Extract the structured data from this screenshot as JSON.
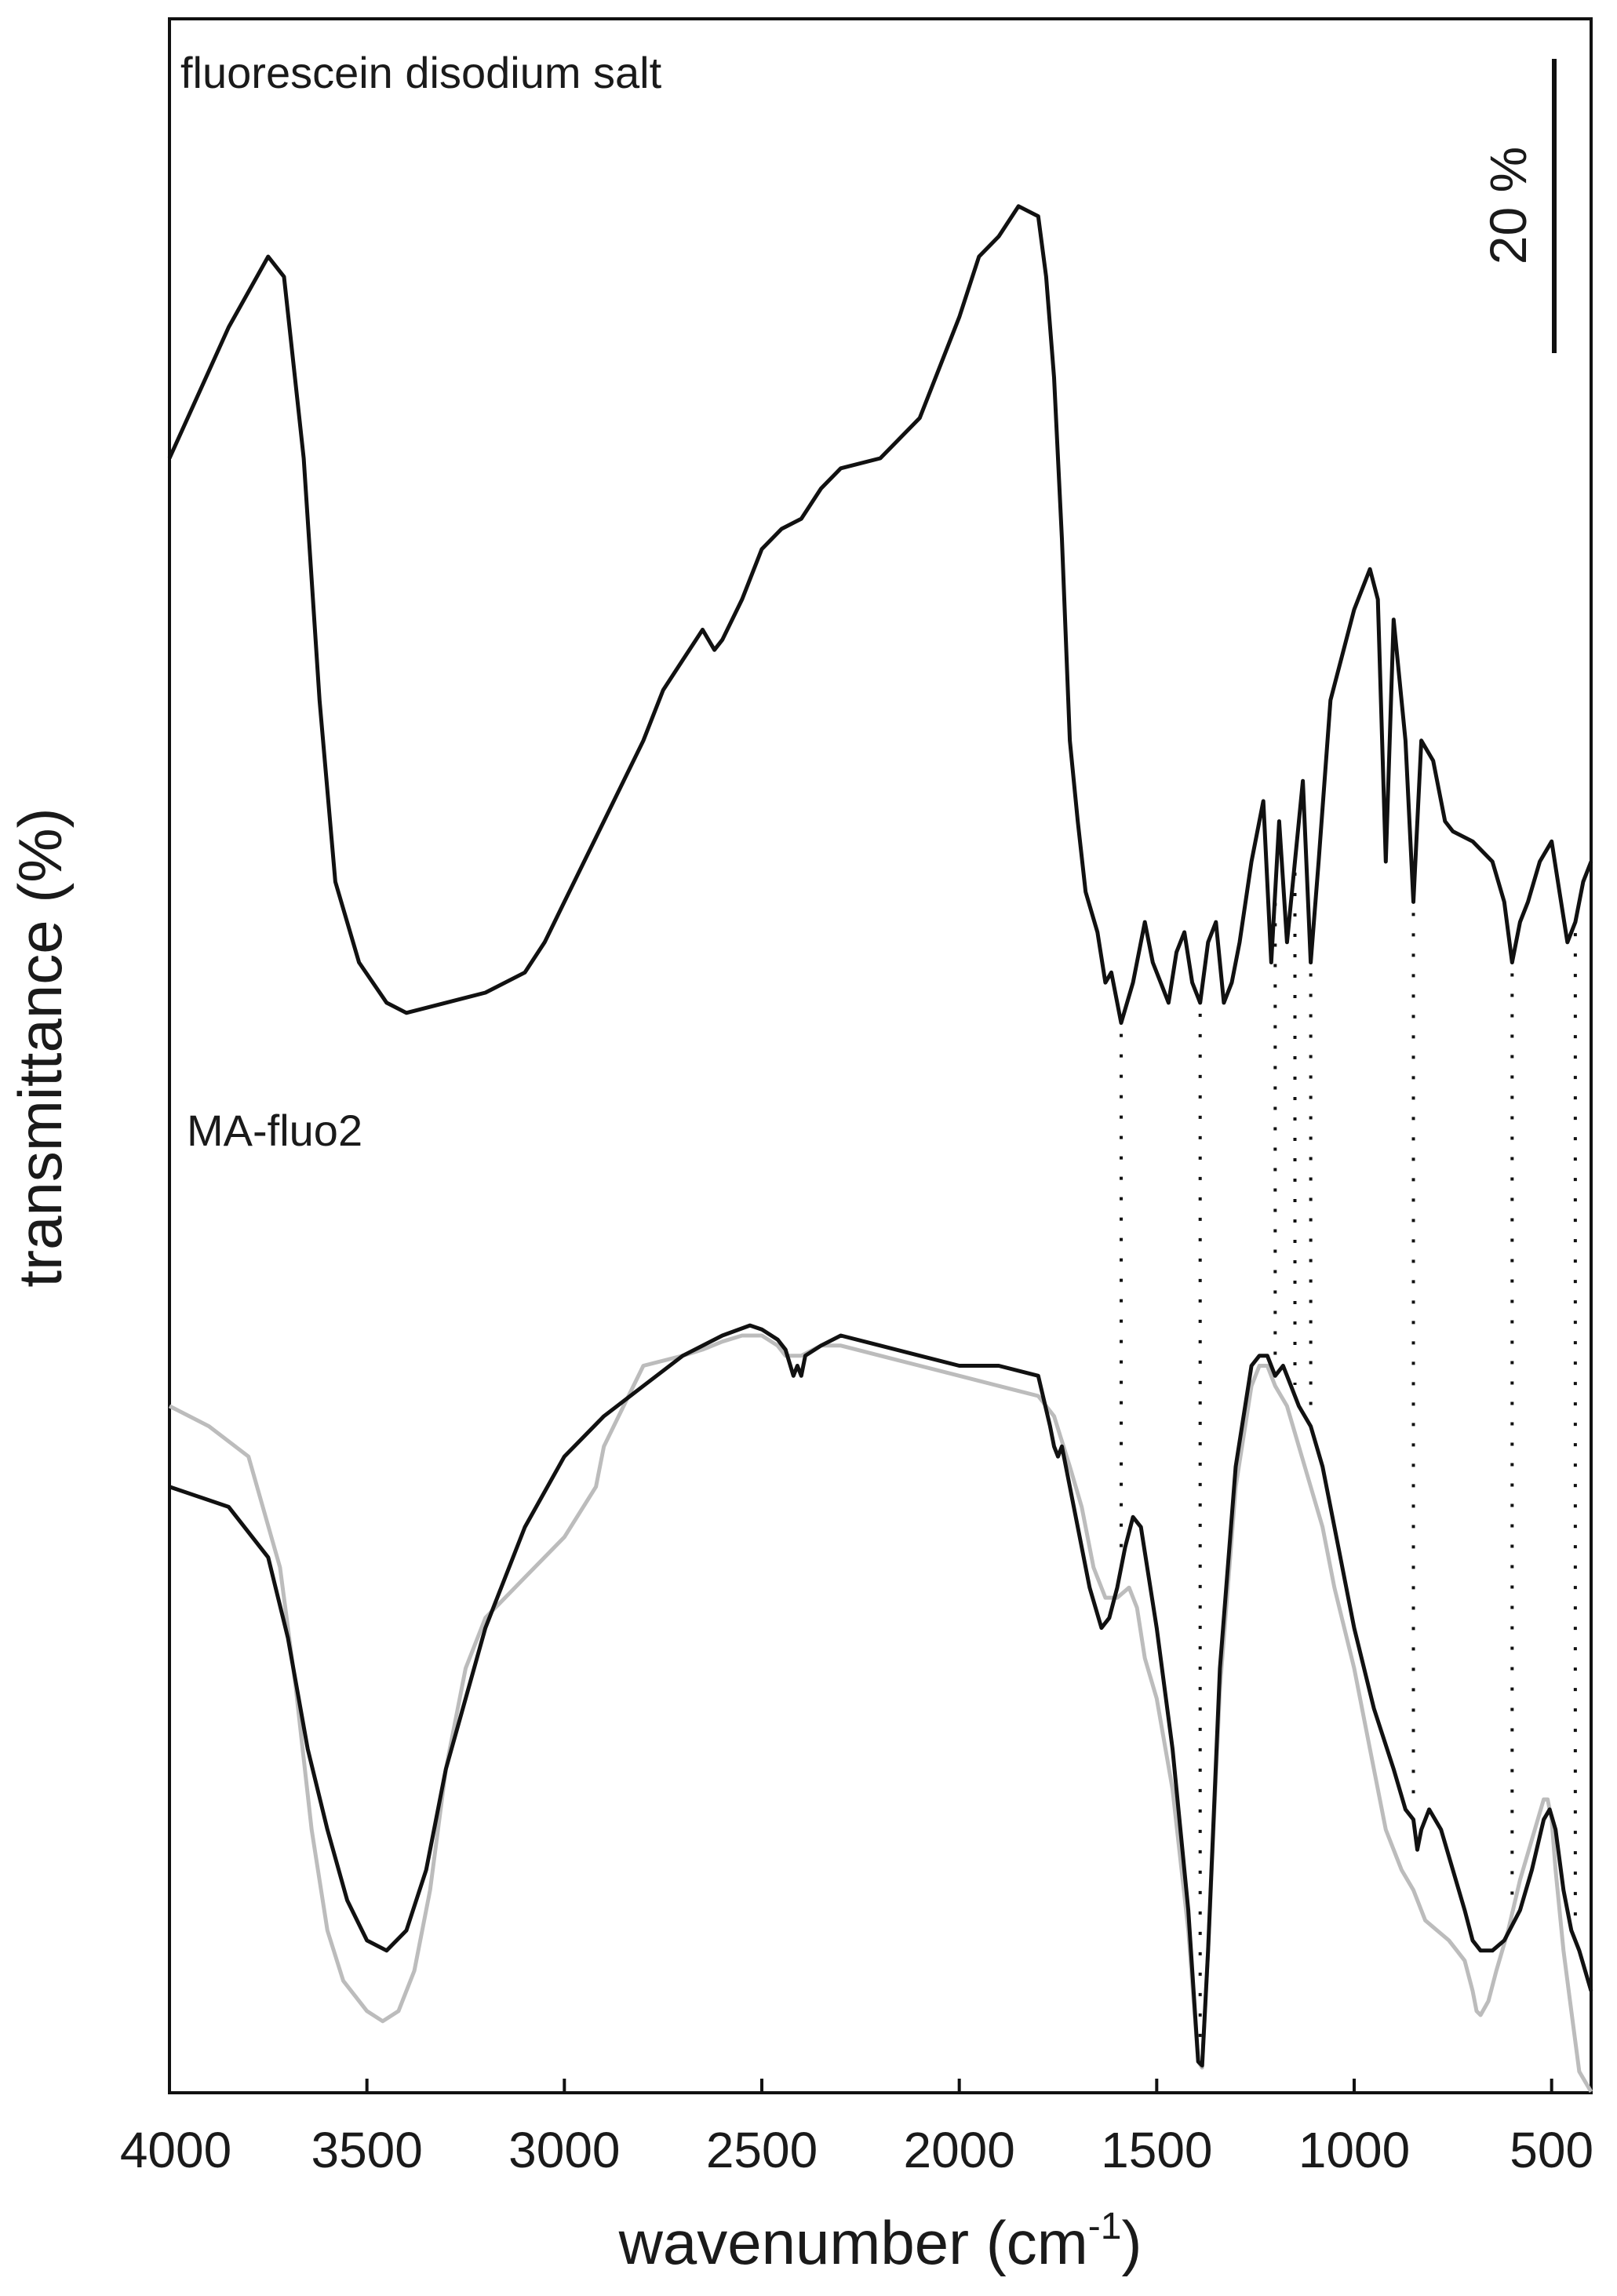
{
  "chart_data": {
    "type": "line",
    "title": "",
    "xlabel": "wavenumber (cm-1)",
    "xlabel_base": "wavenumber (cm",
    "xlabel_sup": "-1",
    "xlabel_close": ")",
    "ylabel": "transmittance (%)",
    "xlim": [
      4000,
      400
    ],
    "x_reversed": true,
    "xticks": [
      "4000",
      "3500",
      "3000",
      "2500",
      "2000",
      "1500",
      "1000",
      "500"
    ],
    "xtick_values": [
      4000,
      3500,
      3000,
      2500,
      2000,
      1500,
      1000,
      500
    ],
    "ylim": [
      0,
      100
    ],
    "yticks_shown": false,
    "grid": false,
    "scale_bar": {
      "label": "20 %",
      "value": 20
    },
    "annotations": [
      {
        "text": "fluorescein disodium salt"
      },
      {
        "text": "MA-fluo2"
      }
    ],
    "dotted_guides": [
      1590,
      1390,
      1200,
      1150,
      1110,
      850,
      600,
      440
    ],
    "series": [
      {
        "color": "#111111",
        "points": [
          [
            4000,
            80
          ],
          [
            3850,
            86.5
          ],
          [
            3750,
            90
          ],
          [
            3710,
            89
          ],
          [
            3660,
            80
          ],
          [
            3620,
            68
          ],
          [
            3580,
            59
          ],
          [
            3520,
            55
          ],
          [
            3450,
            53
          ],
          [
            3400,
            52.5
          ],
          [
            3300,
            53
          ],
          [
            3200,
            53.5
          ],
          [
            3100,
            54.5
          ],
          [
            3050,
            56
          ],
          [
            3000,
            58
          ],
          [
            2900,
            62
          ],
          [
            2800,
            66
          ],
          [
            2750,
            68.5
          ],
          [
            2700,
            70
          ],
          [
            2650,
            71.5
          ],
          [
            2620,
            70.5
          ],
          [
            2600,
            71
          ],
          [
            2550,
            73
          ],
          [
            2500,
            75.5
          ],
          [
            2450,
            76.5
          ],
          [
            2400,
            77
          ],
          [
            2350,
            78.5
          ],
          [
            2300,
            79.5
          ],
          [
            2200,
            80
          ],
          [
            2100,
            82
          ],
          [
            2000,
            87
          ],
          [
            1950,
            90
          ],
          [
            1900,
            91
          ],
          [
            1850,
            92.5
          ],
          [
            1800,
            92
          ],
          [
            1780,
            89
          ],
          [
            1760,
            84
          ],
          [
            1740,
            76
          ],
          [
            1720,
            66
          ],
          [
            1700,
            62
          ],
          [
            1680,
            58.5
          ],
          [
            1650,
            56.5
          ],
          [
            1630,
            54
          ],
          [
            1615,
            54.5
          ],
          [
            1600,
            53
          ],
          [
            1590,
            52
          ],
          [
            1560,
            54
          ],
          [
            1530,
            57
          ],
          [
            1510,
            55
          ],
          [
            1490,
            54
          ],
          [
            1470,
            53
          ],
          [
            1450,
            55.5
          ],
          [
            1430,
            56.5
          ],
          [
            1410,
            54
          ],
          [
            1390,
            53
          ],
          [
            1370,
            56
          ],
          [
            1350,
            57
          ],
          [
            1330,
            53
          ],
          [
            1310,
            54
          ],
          [
            1290,
            56
          ],
          [
            1260,
            60
          ],
          [
            1230,
            63
          ],
          [
            1210,
            55
          ],
          [
            1190,
            62
          ],
          [
            1170,
            56
          ],
          [
            1150,
            60
          ],
          [
            1130,
            64
          ],
          [
            1110,
            55
          ],
          [
            1090,
            60
          ],
          [
            1060,
            68
          ],
          [
            1000,
            72.5
          ],
          [
            960,
            74.5
          ],
          [
            940,
            73
          ],
          [
            920,
            60
          ],
          [
            900,
            72
          ],
          [
            870,
            66
          ],
          [
            850,
            58
          ],
          [
            830,
            66
          ],
          [
            800,
            65
          ],
          [
            770,
            62
          ],
          [
            750,
            61.5
          ],
          [
            700,
            61
          ],
          [
            650,
            60
          ],
          [
            620,
            58
          ],
          [
            600,
            55
          ],
          [
            580,
            57
          ],
          [
            560,
            58
          ],
          [
            530,
            60
          ],
          [
            500,
            61
          ],
          [
            480,
            58.5
          ],
          [
            460,
            56
          ],
          [
            440,
            57
          ],
          [
            420,
            59
          ],
          [
            400,
            60
          ]
        ]
      },
      {
        "color": "#111111",
        "points": [
          [
            4000,
            29
          ],
          [
            3850,
            28
          ],
          [
            3750,
            25.5
          ],
          [
            3700,
            21.5
          ],
          [
            3650,
            16
          ],
          [
            3600,
            12
          ],
          [
            3550,
            8.5
          ],
          [
            3500,
            6.5
          ],
          [
            3450,
            6
          ],
          [
            3400,
            7
          ],
          [
            3350,
            10
          ],
          [
            3300,
            15
          ],
          [
            3200,
            22
          ],
          [
            3100,
            27
          ],
          [
            3000,
            30.5
          ],
          [
            2900,
            32.5
          ],
          [
            2800,
            34
          ],
          [
            2700,
            35.5
          ],
          [
            2600,
            36.5
          ],
          [
            2530,
            37
          ],
          [
            2500,
            36.8
          ],
          [
            2460,
            36.3
          ],
          [
            2440,
            35.8
          ],
          [
            2420,
            34.5
          ],
          [
            2410,
            35
          ],
          [
            2400,
            34.5
          ],
          [
            2390,
            35.5
          ],
          [
            2350,
            36
          ],
          [
            2300,
            36.5
          ],
          [
            2200,
            36
          ],
          [
            2100,
            35.5
          ],
          [
            2000,
            35
          ],
          [
            1900,
            35
          ],
          [
            1800,
            34.5
          ],
          [
            1770,
            32
          ],
          [
            1760,
            31
          ],
          [
            1750,
            30.5
          ],
          [
            1740,
            31
          ],
          [
            1720,
            29
          ],
          [
            1700,
            27
          ],
          [
            1670,
            24
          ],
          [
            1640,
            22
          ],
          [
            1620,
            22.5
          ],
          [
            1600,
            24
          ],
          [
            1580,
            26
          ],
          [
            1560,
            27.5
          ],
          [
            1540,
            27
          ],
          [
            1500,
            22
          ],
          [
            1460,
            16
          ],
          [
            1420,
            8
          ],
          [
            1395,
            0.5
          ],
          [
            1385,
            0.3
          ],
          [
            1370,
            6
          ],
          [
            1340,
            20
          ],
          [
            1300,
            30
          ],
          [
            1260,
            35
          ],
          [
            1240,
            35.5
          ],
          [
            1220,
            35.5
          ],
          [
            1200,
            34.5
          ],
          [
            1180,
            35
          ],
          [
            1160,
            34
          ],
          [
            1140,
            33
          ],
          [
            1110,
            32
          ],
          [
            1080,
            30
          ],
          [
            1040,
            26
          ],
          [
            1000,
            22
          ],
          [
            950,
            18
          ],
          [
            900,
            15
          ],
          [
            870,
            13
          ],
          [
            850,
            12.5
          ],
          [
            840,
            11
          ],
          [
            830,
            12
          ],
          [
            810,
            13
          ],
          [
            780,
            12
          ],
          [
            750,
            10
          ],
          [
            720,
            8
          ],
          [
            700,
            6.5
          ],
          [
            680,
            6
          ],
          [
            650,
            6
          ],
          [
            620,
            6.5
          ],
          [
            580,
            8
          ],
          [
            550,
            10
          ],
          [
            520,
            12.5
          ],
          [
            505,
            13
          ],
          [
            490,
            12
          ],
          [
            470,
            9
          ],
          [
            450,
            7
          ],
          [
            430,
            6
          ],
          [
            400,
            4
          ]
        ]
      },
      {
        "color": "#bcbcbc",
        "points": [
          [
            4000,
            33
          ],
          [
            3900,
            32
          ],
          [
            3800,
            30.5
          ],
          [
            3720,
            25
          ],
          [
            3680,
            19
          ],
          [
            3640,
            12
          ],
          [
            3600,
            7
          ],
          [
            3560,
            4.5
          ],
          [
            3500,
            3
          ],
          [
            3460,
            2.5
          ],
          [
            3420,
            3
          ],
          [
            3380,
            5
          ],
          [
            3340,
            9
          ],
          [
            3300,
            15
          ],
          [
            3250,
            20
          ],
          [
            3200,
            22.5
          ],
          [
            3100,
            24.5
          ],
          [
            3000,
            26.5
          ],
          [
            2920,
            29
          ],
          [
            2900,
            31
          ],
          [
            2850,
            33
          ],
          [
            2800,
            35
          ],
          [
            2700,
            35.5
          ],
          [
            2650,
            35.8
          ],
          [
            2600,
            36.2
          ],
          [
            2550,
            36.5
          ],
          [
            2500,
            36.5
          ],
          [
            2460,
            36
          ],
          [
            2440,
            35.5
          ],
          [
            2400,
            35.5
          ],
          [
            2350,
            36
          ],
          [
            2300,
            36
          ],
          [
            2200,
            35.5
          ],
          [
            2100,
            35
          ],
          [
            2000,
            34.5
          ],
          [
            1900,
            34
          ],
          [
            1800,
            33.5
          ],
          [
            1760,
            32.5
          ],
          [
            1720,
            30
          ],
          [
            1690,
            28
          ],
          [
            1660,
            25
          ],
          [
            1630,
            23.5
          ],
          [
            1600,
            23.5
          ],
          [
            1570,
            24
          ],
          [
            1550,
            23
          ],
          [
            1530,
            20.5
          ],
          [
            1500,
            18.5
          ],
          [
            1460,
            14
          ],
          [
            1420,
            7
          ],
          [
            1395,
            0.5
          ],
          [
            1385,
            0.2
          ],
          [
            1370,
            6
          ],
          [
            1340,
            19
          ],
          [
            1300,
            29
          ],
          [
            1260,
            34
          ],
          [
            1240,
            35
          ],
          [
            1220,
            35
          ],
          [
            1200,
            34
          ],
          [
            1170,
            33
          ],
          [
            1140,
            31
          ],
          [
            1110,
            29
          ],
          [
            1080,
            27
          ],
          [
            1050,
            24
          ],
          [
            1000,
            20
          ],
          [
            960,
            16
          ],
          [
            920,
            12
          ],
          [
            880,
            10
          ],
          [
            850,
            9
          ],
          [
            820,
            7.5
          ],
          [
            790,
            7
          ],
          [
            760,
            6.5
          ],
          [
            740,
            6
          ],
          [
            720,
            5.5
          ],
          [
            700,
            4
          ],
          [
            690,
            3
          ],
          [
            680,
            2.8
          ],
          [
            660,
            3.5
          ],
          [
            640,
            5
          ],
          [
            610,
            7
          ],
          [
            580,
            9.5
          ],
          [
            550,
            11.5
          ],
          [
            520,
            13.5
          ],
          [
            510,
            13.5
          ],
          [
            500,
            12.5
          ],
          [
            490,
            10
          ],
          [
            470,
            6
          ],
          [
            450,
            3
          ],
          [
            430,
            0
          ],
          [
            400,
            -1
          ]
        ]
      }
    ]
  }
}
